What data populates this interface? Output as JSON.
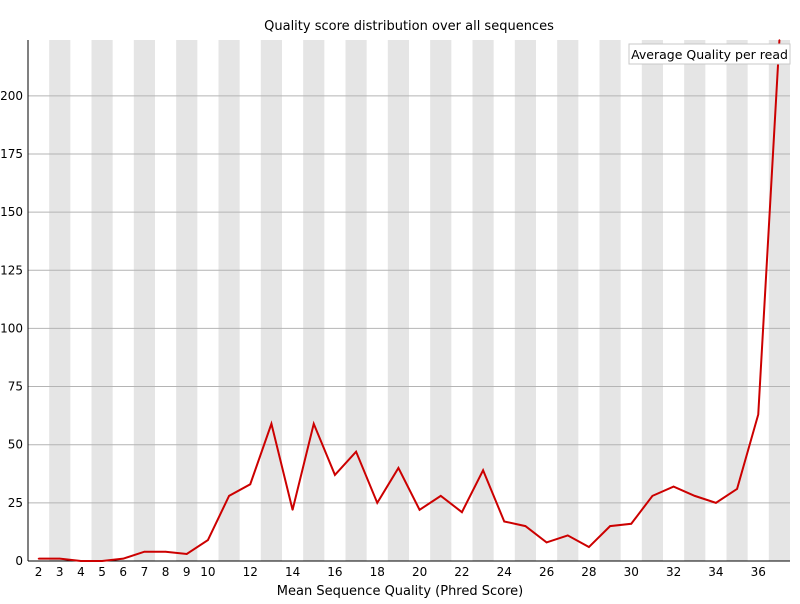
{
  "chart_data": {
    "type": "line",
    "title": "Quality score distribution over all sequences",
    "xlabel": "Mean Sequence Quality (Phred Score)",
    "ylabel": "",
    "x": [
      2,
      3,
      4,
      5,
      6,
      7,
      8,
      9,
      10,
      11,
      12,
      13,
      14,
      15,
      16,
      17,
      18,
      19,
      20,
      21,
      22,
      23,
      24,
      25,
      26,
      27,
      28,
      29,
      30,
      31,
      32,
      33,
      34,
      35,
      36,
      37
    ],
    "x_tick_labels": [
      "2",
      "3",
      "4",
      "5",
      "6",
      "7",
      "8",
      "9",
      "10",
      "12",
      "14",
      "16",
      "18",
      "20",
      "22",
      "24",
      "26",
      "28",
      "30",
      "32",
      "34",
      "36"
    ],
    "ylim": [
      0,
      224
    ],
    "y_ticks": [
      0,
      25,
      50,
      75,
      100,
      125,
      150,
      175,
      200
    ],
    "grid": true,
    "alternating_column_shading": true,
    "legend_position": "top-right",
    "series": [
      {
        "name": "Average Quality per read",
        "color": "#cc0000",
        "values": [
          1,
          1,
          0,
          0,
          1,
          4,
          4,
          3,
          9,
          28,
          33,
          59,
          22,
          59,
          37,
          47,
          25,
          40,
          22,
          28,
          21,
          39,
          17,
          15,
          8,
          11,
          6,
          15,
          16,
          28,
          32,
          28,
          25,
          31,
          63,
          224
        ]
      }
    ],
    "colors": {
      "shade": "#e5e5e5",
      "grid": "#b4b4b4",
      "axis": "#000000",
      "line": "#cc0000"
    }
  }
}
